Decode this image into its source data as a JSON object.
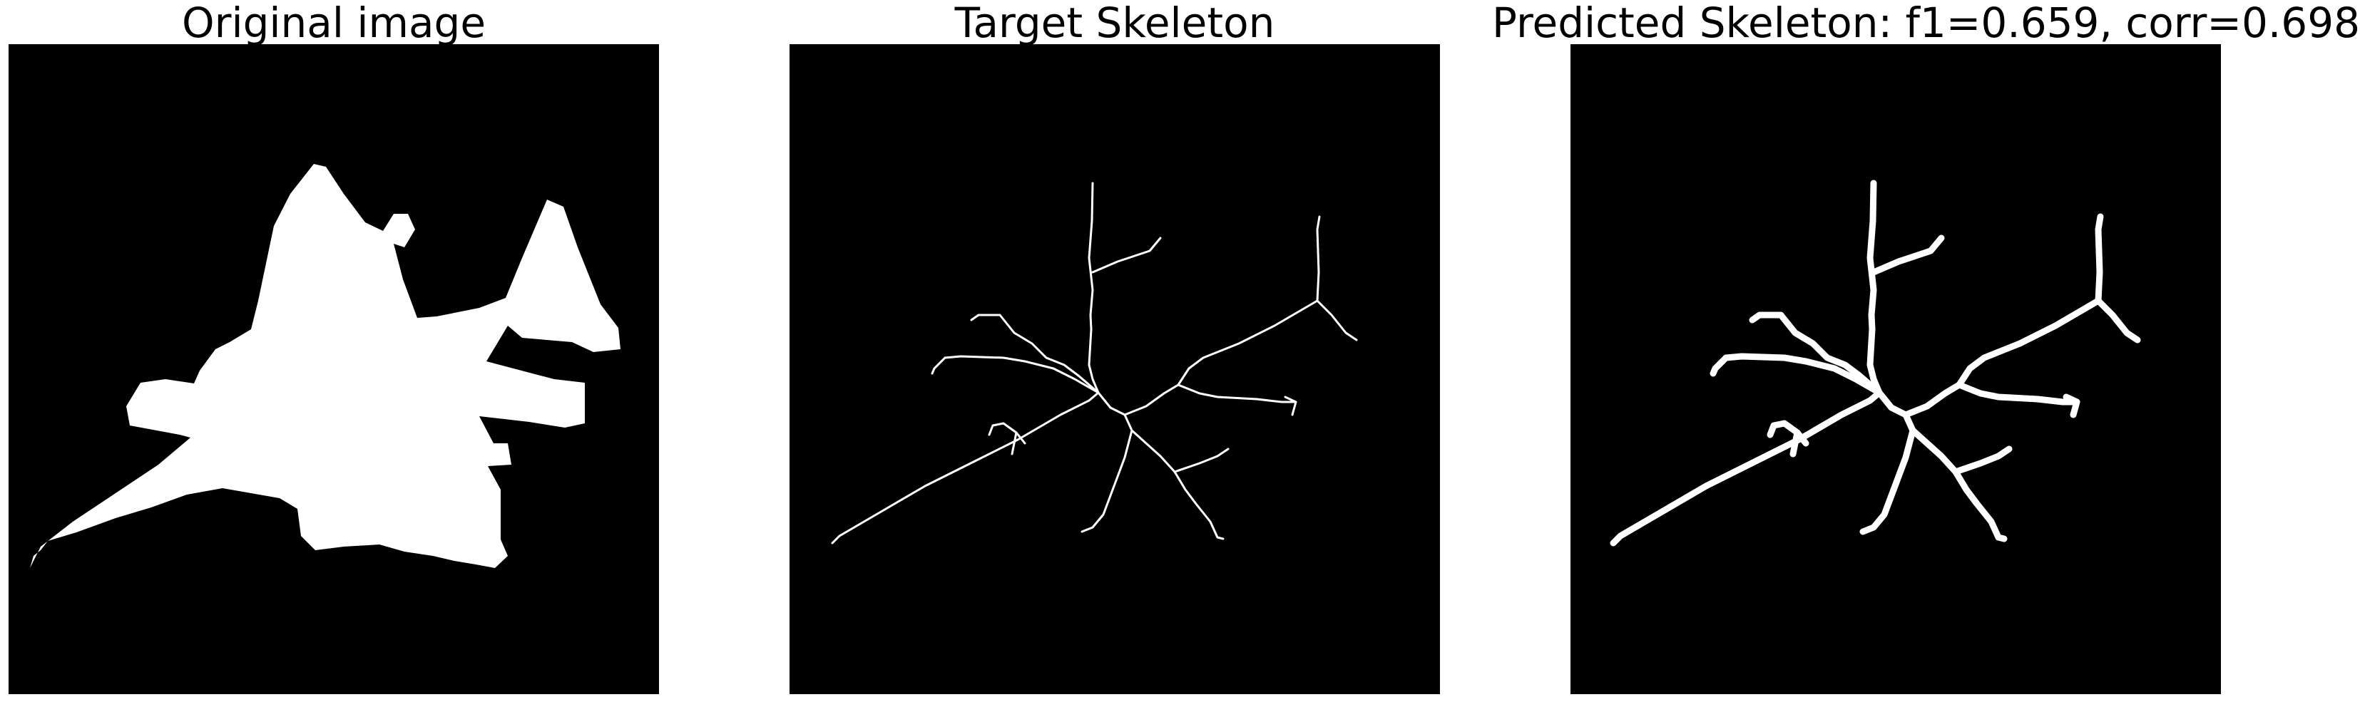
{
  "panels": [
    {
      "title": "Original image",
      "content": "binary-silhouette"
    },
    {
      "title": "Target Skeleton",
      "content": "thin-skeleton"
    },
    {
      "title": "Predicted Skeleton: f1=0.659, corr=0.698",
      "content": "thick-skeleton"
    }
  ],
  "colors": {
    "background": "#000000",
    "foreground": "#ffffff",
    "page": "#ffffff",
    "title_text": "#000000"
  }
}
